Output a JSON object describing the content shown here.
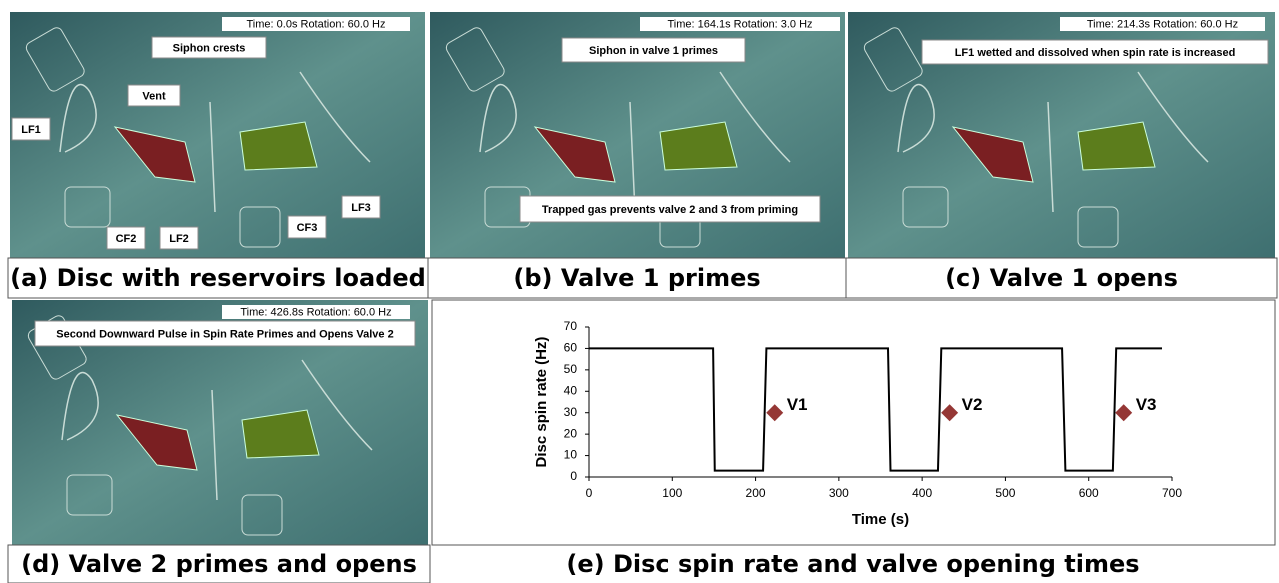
{
  "panels": [
    {
      "caption": "(a) Disc with reservoirs loaded",
      "status": "Time: 0.0s  Rotation:  60.0 Hz",
      "labels": [
        "Siphon crests",
        "Vent",
        "LF1",
        "CF2",
        "LF2",
        "CF3",
        "LF3"
      ]
    },
    {
      "caption": "(b) Valve 1 primes",
      "status": "Time: 164.1s  Rotation:  3.0 Hz",
      "labels": [
        "Siphon in valve 1 primes",
        "Trapped gas prevents valve 2 and 3 from priming"
      ]
    },
    {
      "caption": "(c) Valve 1 opens",
      "status": "Time: 214.3s  Rotation:  60.0 Hz",
      "labels": [
        "LF1 wetted and dissolved when spin rate is increased"
      ]
    },
    {
      "caption": "(d) Valve 2 primes and opens",
      "status": "Time: 426.8s  Rotation:  60.0 Hz",
      "labels": [
        "Second Downward Pulse in Spin Rate Primes and Opens Valve 2"
      ]
    }
  ],
  "chart_data": {
    "type": "line",
    "title": "(e) Disc spin rate and valve opening times",
    "x_label": "Time (s)",
    "y_label": "Disc spin rate (Hz)",
    "x": [
      0,
      149,
      151,
      209,
      213,
      359,
      362,
      419,
      423,
      568,
      572,
      629,
      633,
      688
    ],
    "values": [
      60,
      60,
      3,
      3,
      60,
      60,
      3,
      3,
      60,
      60,
      3,
      3,
      60,
      60
    ],
    "color": "#000000",
    "markers": {
      "x": [
        223,
        433,
        642
      ],
      "values": [
        30,
        30,
        30
      ],
      "labels": [
        "V1",
        "V2",
        "V3"
      ],
      "color": "#953735"
    },
    "xlim": [
      0,
      700
    ],
    "ylim": [
      0,
      70
    ],
    "xticks": [
      0,
      100,
      200,
      300,
      400,
      500,
      600,
      700
    ],
    "yticks": [
      0,
      10,
      20,
      30,
      40,
      50,
      60,
      70
    ]
  }
}
